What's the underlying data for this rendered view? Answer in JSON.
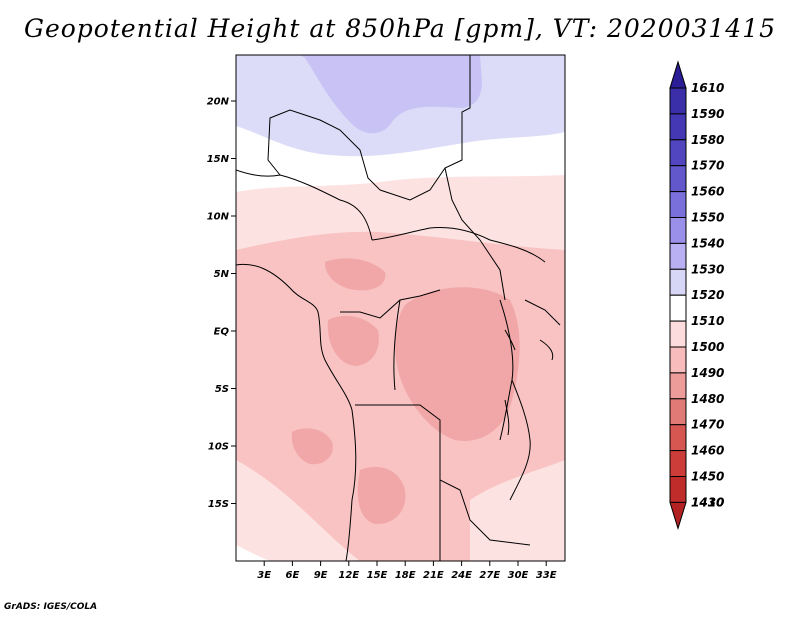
{
  "title": "Geopotential Height at 850hPa [gpm], VT: 2020031415",
  "credit": "GrADS: IGES/COLA",
  "map": {
    "lat_range": [
      -20,
      24
    ],
    "lon_range": [
      0,
      35
    ],
    "lat_ticks": [
      {
        "value": 20,
        "label": "20N"
      },
      {
        "value": 15,
        "label": "15N"
      },
      {
        "value": 10,
        "label": "10N"
      },
      {
        "value": 5,
        "label": "5N"
      },
      {
        "value": 0,
        "label": "EQ"
      },
      {
        "value": -5,
        "label": "5S"
      },
      {
        "value": -10,
        "label": "10S"
      },
      {
        "value": -15,
        "label": "15S"
      }
    ],
    "lon_ticks": [
      {
        "value": 3,
        "label": "3E"
      },
      {
        "value": 6,
        "label": "6E"
      },
      {
        "value": 9,
        "label": "9E"
      },
      {
        "value": 12,
        "label": "12E"
      },
      {
        "value": 15,
        "label": "15E"
      },
      {
        "value": 18,
        "label": "18E"
      },
      {
        "value": 21,
        "label": "21E"
      },
      {
        "value": 24,
        "label": "24E"
      },
      {
        "value": 27,
        "label": "27E"
      },
      {
        "value": 30,
        "label": "30E"
      },
      {
        "value": 33,
        "label": "33E"
      }
    ]
  },
  "colorbar": {
    "top_value": "1610",
    "top_color": "#2a1d96",
    "bottom_value": "1410",
    "bottom_color": "#b22222",
    "levels": [
      {
        "value": "1590",
        "color": "#3a2fa8"
      },
      {
        "value": "1580",
        "color": "#4538b4"
      },
      {
        "value": "1570",
        "color": "#5246c0"
      },
      {
        "value": "1560",
        "color": "#6258cc"
      },
      {
        "value": "1550",
        "color": "#7a70dc"
      },
      {
        "value": "1540",
        "color": "#9a90ea"
      },
      {
        "value": "1530",
        "color": "#b8b0f2"
      },
      {
        "value": "1520",
        "color": "#d8d6f7"
      },
      {
        "value": "1510",
        "color": "#ffffff"
      },
      {
        "value": "1500",
        "color": "#fcdcdc"
      },
      {
        "value": "1490",
        "color": "#f8bcbc"
      },
      {
        "value": "1480",
        "color": "#ee9c9a"
      },
      {
        "value": "1470",
        "color": "#e07a76"
      },
      {
        "value": "1460",
        "color": "#d65652"
      },
      {
        "value": "1450",
        "color": "#cc3c38"
      },
      {
        "value": "1430",
        "color": "#c02c2a"
      }
    ]
  },
  "field_colors": {
    "c1530": "#c9c3f5",
    "c1520": "#dcdcf8",
    "c1510": "#ffffff",
    "c1500": "#fde2e2",
    "c1490": "#f9c3c3",
    "c1480": "#f1a7a7"
  }
}
